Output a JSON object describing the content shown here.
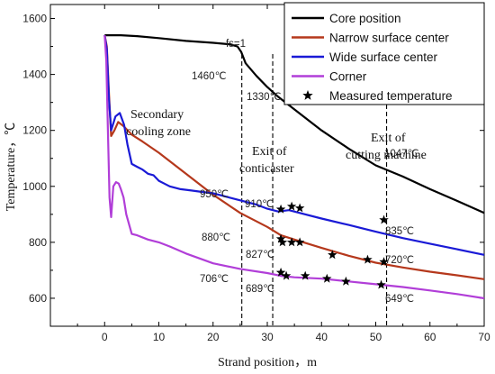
{
  "chart_data": {
    "type": "line",
    "xlabel": "Strand position，m",
    "ylabel": "Temperature，℃",
    "xlim": [
      -10,
      70
    ],
    "ylim": [
      500,
      1650
    ],
    "x_ticks": [
      0,
      10,
      20,
      30,
      40,
      50,
      60,
      70
    ],
    "y_ticks": [
      600,
      800,
      1000,
      1200,
      1400,
      1600
    ],
    "legend_position": "top-right",
    "legend": [
      {
        "label": "Core position",
        "color": "#000000",
        "kind": "line"
      },
      {
        "label": "Narrow surface center",
        "color": "#b5381c",
        "kind": "line"
      },
      {
        "label": "Wide surface center",
        "color": "#1a1ad6",
        "kind": "line"
      },
      {
        "label": "Corner",
        "color": "#b13ed8",
        "kind": "line"
      },
      {
        "label": "Measured temperature",
        "color": "#000000",
        "kind": "star"
      }
    ],
    "series": [
      {
        "key": "core",
        "color": "#000000",
        "x": [
          0,
          3,
          6,
          10,
          15,
          20,
          23,
          24.5,
          25.2,
          26,
          28,
          30,
          32,
          35,
          40,
          45,
          50,
          55,
          60,
          65,
          70
        ],
        "y": [
          1540,
          1540,
          1537,
          1530,
          1520,
          1513,
          1508,
          1500,
          1480,
          1440,
          1395,
          1355,
          1320,
          1275,
          1200,
          1135,
          1075,
          1035,
          990,
          948,
          905
        ]
      },
      {
        "key": "narrow",
        "color": "#b5381c",
        "x": [
          0,
          0.4,
          0.8,
          1.2,
          1.8,
          2.5,
          3.5,
          5,
          7,
          10,
          15,
          20,
          25,
          30,
          32.5,
          35,
          40,
          45,
          50,
          55,
          60,
          65,
          70
        ],
        "y": [
          1540,
          1500,
          1330,
          1180,
          1200,
          1230,
          1215,
          1185,
          1160,
          1120,
          1045,
          970,
          905,
          855,
          825,
          810,
          780,
          752,
          727,
          710,
          695,
          682,
          668
        ]
      },
      {
        "key": "wide",
        "color": "#1a1ad6",
        "x": [
          0,
          0.4,
          0.8,
          1.2,
          2,
          2.8,
          3.6,
          4.2,
          5,
          6,
          7,
          8,
          9,
          10,
          11,
          12,
          14,
          16,
          18,
          20,
          22,
          25,
          28,
          30,
          32,
          34,
          36,
          40,
          45,
          50,
          55,
          60,
          65,
          70
        ],
        "y": [
          1540,
          1490,
          1310,
          1200,
          1250,
          1262,
          1220,
          1150,
          1080,
          1070,
          1060,
          1045,
          1040,
          1020,
          1010,
          1000,
          990,
          985,
          980,
          975,
          965,
          950,
          935,
          920,
          910,
          915,
          905,
          885,
          862,
          838,
          815,
          795,
          775,
          755
        ]
      },
      {
        "key": "corner",
        "color": "#b13ed8",
        "x": [
          0,
          0.3,
          0.6,
          0.9,
          1.2,
          1.6,
          2.1,
          2.6,
          3,
          3.5,
          4,
          5,
          6,
          8,
          10,
          12,
          15,
          20,
          25,
          30,
          32.5,
          35,
          40,
          45,
          50,
          55,
          60,
          65,
          70
        ],
        "y": [
          1540,
          1450,
          1200,
          960,
          890,
          1000,
          1015,
          1010,
          990,
          960,
          900,
          830,
          825,
          810,
          800,
          785,
          760,
          725,
          705,
          690,
          680,
          675,
          670,
          660,
          650,
          640,
          628,
          615,
          600
        ]
      }
    ],
    "measured": [
      {
        "x": 32.5,
        "y": 918
      },
      {
        "x": 34.5,
        "y": 928
      },
      {
        "x": 36,
        "y": 922
      },
      {
        "x": 32.5,
        "y": 812
      },
      {
        "x": 32.8,
        "y": 800
      },
      {
        "x": 34.5,
        "y": 800
      },
      {
        "x": 36,
        "y": 800
      },
      {
        "x": 42,
        "y": 755
      },
      {
        "x": 48.5,
        "y": 738
      },
      {
        "x": 51.5,
        "y": 730
      },
      {
        "x": 51.5,
        "y": 880
      },
      {
        "x": 32.5,
        "y": 692
      },
      {
        "x": 33.5,
        "y": 680
      },
      {
        "x": 37,
        "y": 680
      },
      {
        "x": 41,
        "y": 670
      },
      {
        "x": 44.5,
        "y": 660
      },
      {
        "x": 51,
        "y": 648
      }
    ],
    "vlines": [
      25.3,
      31,
      52
    ],
    "annotations": {
      "fs1": "fs=1",
      "t1460": "1460℃",
      "t1330": "1330℃",
      "t1047": "1047℃",
      "t950": "950℃",
      "t910": "910℃",
      "t835": "835℃",
      "t880": "880℃",
      "t827": "827℃",
      "t720": "720℃",
      "t706": "706℃",
      "t689": "689℃",
      "t649": "649℃",
      "secondary_line1": "Secondary",
      "secondary_line2": "cooling zone",
      "exit_conc_line1": "Exit of",
      "exit_conc_line2": "conticaster",
      "exit_cut_line1": "Exit of",
      "exit_cut_line2": "cutting machine"
    }
  }
}
